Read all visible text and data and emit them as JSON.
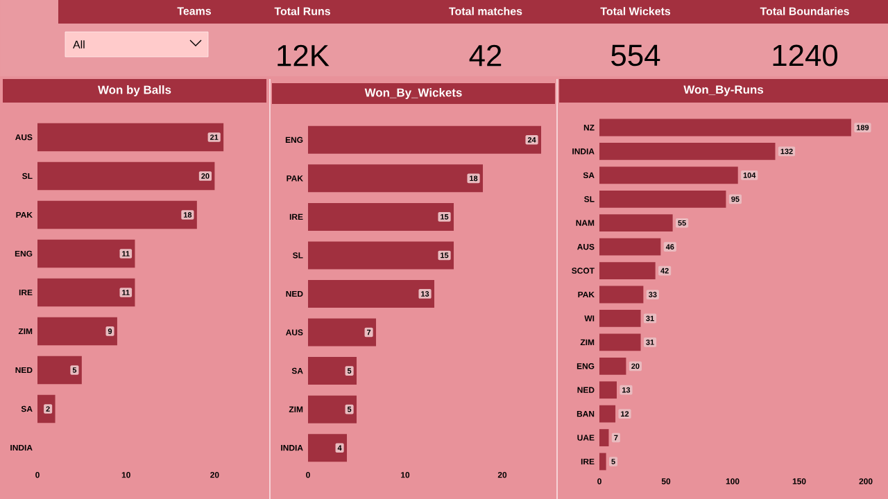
{
  "chart_data": [
    {
      "type": "other",
      "annotations": [
        "Teams",
        "All",
        "Total Runs",
        "12K",
        "Total matches",
        "42",
        "Total Wickets",
        "554",
        "Total Boundaries",
        "1240"
      ]
    },
    {
      "type": "bar",
      "orientation": "horizontal",
      "title": "Won by Balls",
      "categories": [
        "AUS",
        "SL",
        "PAK",
        "ENG",
        "IRE",
        "ZIM",
        "NED",
        "SA",
        "INDIA"
      ],
      "values": [
        21,
        20,
        18,
        11,
        11,
        9,
        5,
        2,
        null
      ],
      "color": "#a1303f",
      "xlim": [
        0,
        26
      ],
      "xticks": [
        0,
        10,
        20
      ],
      "data_labels": true
    },
    {
      "type": "bar",
      "orientation": "horizontal",
      "title": "Won_By_Wickets",
      "categories": [
        "ENG",
        "PAK",
        "IRE",
        "SL",
        "NED",
        "AUS",
        "SA",
        "ZIM",
        "INDIA"
      ],
      "values": [
        24,
        18,
        15,
        15,
        13,
        7,
        5,
        5,
        4
      ],
      "color": "#a1303f",
      "xlim": [
        0,
        24
      ],
      "xticks": [
        0,
        10,
        20
      ],
      "data_labels": true
    },
    {
      "type": "bar",
      "orientation": "horizontal",
      "title": "Won_By-Runs",
      "categories": [
        "NZ",
        "INDIA",
        "SA",
        "SL",
        "NAM",
        "AUS",
        "SCOT",
        "PAK",
        "WI",
        "ZIM",
        "ENG",
        "NED",
        "BAN",
        "UAE",
        "IRE"
      ],
      "values": [
        189,
        132,
        104,
        95,
        55,
        46,
        42,
        33,
        31,
        31,
        20,
        13,
        12,
        7,
        5
      ],
      "color": "#a1303f",
      "xlim": [
        0,
        200
      ],
      "xticks": [
        0,
        50,
        100,
        150,
        200
      ],
      "data_labels": true
    }
  ]
}
